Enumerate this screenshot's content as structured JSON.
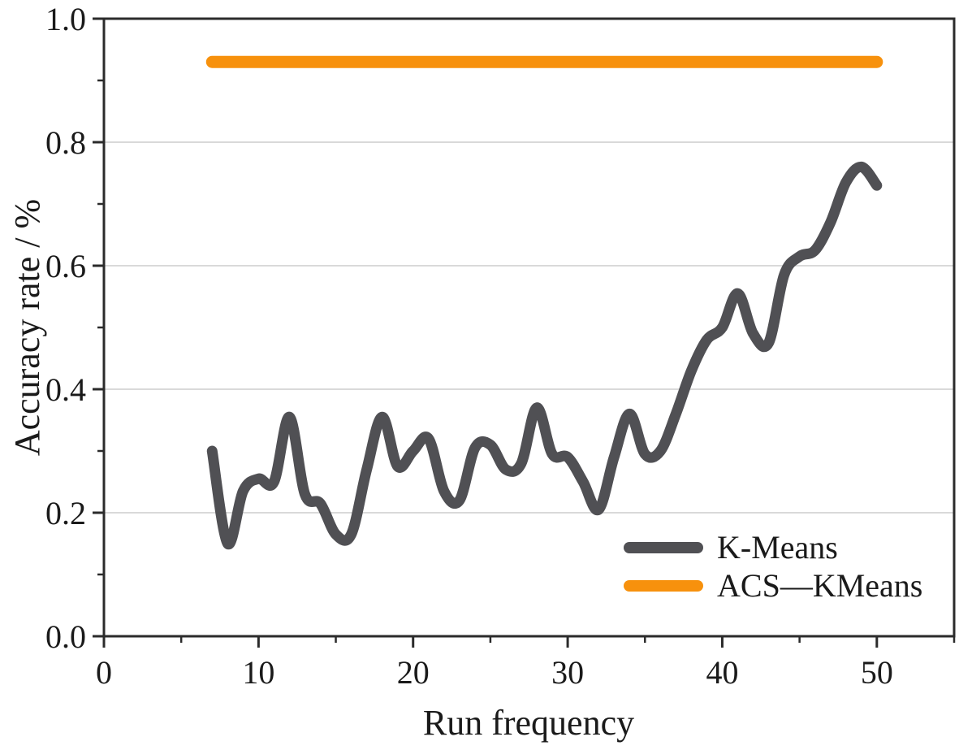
{
  "chart_data": {
    "type": "line",
    "title": "",
    "xlabel": "Run frequency",
    "ylabel": "Accuracy rate / %",
    "xlim": [
      0,
      55
    ],
    "ylim": [
      0.0,
      1.0
    ],
    "x_major_ticks": [
      0,
      10,
      20,
      30,
      40,
      50
    ],
    "x_minor_ticks": [
      5,
      15,
      25,
      35,
      45,
      55
    ],
    "y_major_ticks": [
      0.0,
      0.2,
      0.4,
      0.6,
      0.8,
      1.0
    ],
    "y_minor_ticks": [
      0.1,
      0.3,
      0.5,
      0.7,
      0.9
    ],
    "grid": "horizontal-major-only",
    "legend_position": "lower-right",
    "x": [
      7,
      8,
      9,
      10,
      11,
      12,
      13,
      14,
      15,
      16,
      17,
      18,
      19,
      20,
      21,
      22,
      23,
      24,
      25,
      26,
      27,
      28,
      29,
      30,
      31,
      32,
      33,
      34,
      35,
      36,
      37,
      38,
      39,
      40,
      41,
      42,
      43,
      44,
      45,
      46,
      47,
      48,
      49,
      50
    ],
    "series": [
      {
        "name": "K-Means",
        "color": "#505054",
        "line_width": 13,
        "smooth": true,
        "values": [
          0.3,
          0.15,
          0.235,
          0.255,
          0.25,
          0.355,
          0.23,
          0.215,
          0.165,
          0.165,
          0.27,
          0.355,
          0.275,
          0.3,
          0.32,
          0.235,
          0.22,
          0.305,
          0.31,
          0.27,
          0.28,
          0.37,
          0.295,
          0.29,
          0.25,
          0.205,
          0.29,
          0.36,
          0.295,
          0.3,
          0.36,
          0.43,
          0.48,
          0.5,
          0.555,
          0.49,
          0.475,
          0.585,
          0.615,
          0.625,
          0.67,
          0.735,
          0.76,
          0.73
        ]
      },
      {
        "name": "ACS—KMeans",
        "color": "#F7910D",
        "line_width": 15,
        "smooth": false,
        "values": [
          0.93,
          0.93,
          0.93,
          0.93,
          0.93,
          0.93,
          0.93,
          0.93,
          0.93,
          0.93,
          0.93,
          0.93,
          0.93,
          0.93,
          0.93,
          0.93,
          0.93,
          0.93,
          0.93,
          0.93,
          0.93,
          0.93,
          0.93,
          0.93,
          0.93,
          0.93,
          0.93,
          0.93,
          0.93,
          0.93,
          0.93,
          0.93,
          0.93,
          0.93,
          0.93,
          0.93,
          0.93,
          0.93,
          0.93,
          0.93,
          0.93,
          0.93,
          0.93,
          0.93
        ]
      }
    ],
    "colors": {
      "axis": "#2b2b2b",
      "grid": "#d9d9d9",
      "text": "#1a1a1a",
      "background": "#ffffff"
    }
  }
}
